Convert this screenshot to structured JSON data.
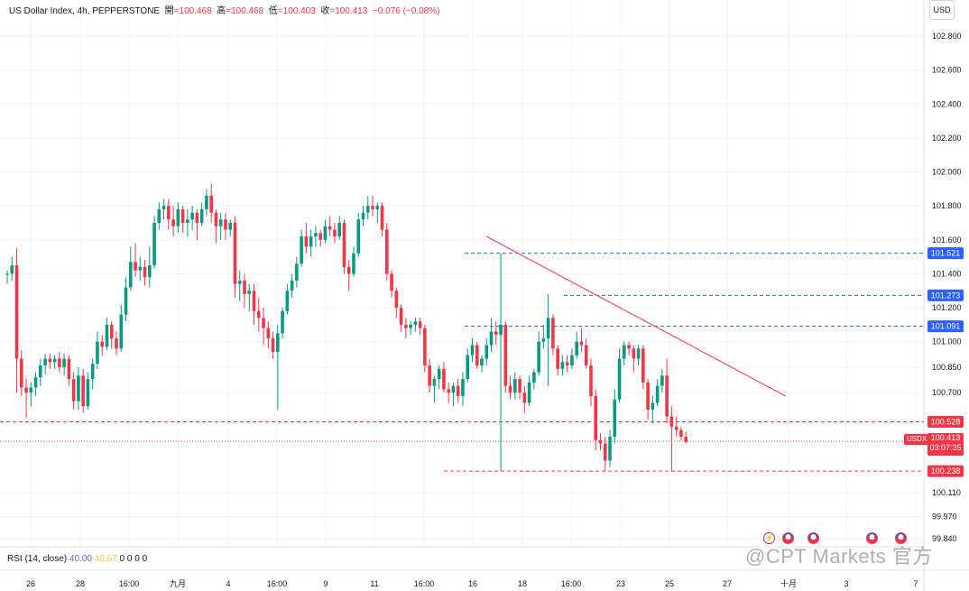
{
  "header": {
    "symbol": "US Dollar Index, 4h, PEPPERSTONE",
    "open_label": "開",
    "open_value": "=100.468",
    "high_label": "高",
    "high_value": "=100.468",
    "low_label": "低",
    "low_value": "=100.403",
    "close_label": "收",
    "close_value": "=100.413",
    "change_value": "−0.076 (−0.08%)"
  },
  "currency_label": "USD",
  "rsi": {
    "label": "RSI (14, close)",
    "value1": "40.00",
    "value2": "46.67",
    "extra": "0 0 0 0"
  },
  "watermark": "@CPT Markets 官方",
  "current_price": {
    "symbol": "USDX",
    "price": "100.413",
    "countdown": "03:07:35"
  },
  "colors": {
    "up": "#089981",
    "down": "#f23645",
    "level_blue": "#2962ff",
    "trendline": "#f7525f"
  },
  "chart_data": {
    "type": "candlestick",
    "ylim": [
      99.78,
      102.95
    ],
    "y_ticks": [
      "102.800",
      "102.600",
      "102.400",
      "102.200",
      "102.000",
      "101.800",
      "101.600",
      "101.400",
      "101.200",
      "101.000",
      "100.850",
      "100.700",
      "100.110",
      "99.970",
      "99.840"
    ],
    "x_ticks": [
      "26",
      "28",
      "16:00",
      "九月",
      "4",
      "16:00",
      "9",
      "11",
      "16:00",
      "16",
      "18",
      "16:00",
      "23",
      "25",
      "27",
      "十月",
      "3",
      "7"
    ],
    "levels": [
      {
        "value": 101.521,
        "label": "101.521",
        "color": "blue"
      },
      {
        "value": 101.273,
        "label": "101.273",
        "color": "blue"
      },
      {
        "value": 101.091,
        "label": "101.091",
        "color": "blue"
      },
      {
        "value": 100.528,
        "label": "100.528",
        "color": "red"
      },
      {
        "value": 100.238,
        "label": "100.238",
        "color": "red"
      }
    ],
    "current_value": 100.413,
    "trendline": [
      {
        "i": 101,
        "value": 101.62
      },
      {
        "i": 164,
        "value": 100.68
      }
    ],
    "candles": [
      [
        101.4,
        101.42,
        101.34,
        101.4
      ],
      [
        101.4,
        101.5,
        101.36,
        101.45
      ],
      [
        101.45,
        101.55,
        100.7,
        100.9
      ],
      [
        100.9,
        100.95,
        100.68,
        100.73
      ],
      [
        100.73,
        100.78,
        100.55,
        100.7
      ],
      [
        100.7,
        100.76,
        100.62,
        100.73
      ],
      [
        100.73,
        100.82,
        100.68,
        100.79
      ],
      [
        100.79,
        100.9,
        100.74,
        100.86
      ],
      [
        100.86,
        100.93,
        100.81,
        100.9
      ],
      [
        100.9,
        100.93,
        100.84,
        100.88
      ],
      [
        100.88,
        100.92,
        100.84,
        100.9
      ],
      [
        100.9,
        100.94,
        100.82,
        100.85
      ],
      [
        100.85,
        100.93,
        100.8,
        100.9
      ],
      [
        100.9,
        100.92,
        100.74,
        100.78
      ],
      [
        100.78,
        100.82,
        100.6,
        100.65
      ],
      [
        100.65,
        100.85,
        100.6,
        100.8
      ],
      [
        100.8,
        100.84,
        100.58,
        100.62
      ],
      [
        100.62,
        100.82,
        100.6,
        100.78
      ],
      [
        100.78,
        100.9,
        100.72,
        100.87
      ],
      [
        100.87,
        101.06,
        100.84,
        101.0
      ],
      [
        101.0,
        101.04,
        100.92,
        100.97
      ],
      [
        100.97,
        101.14,
        100.95,
        101.1
      ],
      [
        101.1,
        101.12,
        100.96,
        101.02
      ],
      [
        101.02,
        101.06,
        100.92,
        100.96
      ],
      [
        100.96,
        101.22,
        100.94,
        101.16
      ],
      [
        101.16,
        101.38,
        101.12,
        101.32
      ],
      [
        101.32,
        101.56,
        101.3,
        101.47
      ],
      [
        101.47,
        101.58,
        101.38,
        101.42
      ],
      [
        101.42,
        101.5,
        101.36,
        101.44
      ],
      [
        101.44,
        101.48,
        101.33,
        101.38
      ],
      [
        101.38,
        101.56,
        101.32,
        101.45
      ],
      [
        101.45,
        101.74,
        101.43,
        101.7
      ],
      [
        101.7,
        101.82,
        101.66,
        101.78
      ],
      [
        101.78,
        101.84,
        101.72,
        101.8
      ],
      [
        101.8,
        101.84,
        101.66,
        101.72
      ],
      [
        101.72,
        101.8,
        101.62,
        101.68
      ],
      [
        101.68,
        101.82,
        101.64,
        101.78
      ],
      [
        101.78,
        101.8,
        101.64,
        101.7
      ],
      [
        101.7,
        101.78,
        101.62,
        101.72
      ],
      [
        101.72,
        101.8,
        101.66,
        101.76
      ],
      [
        101.76,
        101.78,
        101.6,
        101.7
      ],
      [
        101.7,
        101.82,
        101.68,
        101.78
      ],
      [
        101.78,
        101.9,
        101.74,
        101.86
      ],
      [
        101.86,
        101.93,
        101.7,
        101.76
      ],
      [
        101.76,
        101.78,
        101.58,
        101.68
      ],
      [
        101.68,
        101.76,
        101.6,
        101.72
      ],
      [
        101.72,
        101.76,
        101.6,
        101.66
      ],
      [
        101.66,
        101.72,
        101.62,
        101.7
      ],
      [
        101.7,
        101.74,
        101.26,
        101.34
      ],
      [
        101.34,
        101.42,
        101.24,
        101.36
      ],
      [
        101.36,
        101.4,
        101.2,
        101.28
      ],
      [
        101.28,
        101.34,
        101.18,
        101.3
      ],
      [
        101.3,
        101.34,
        101.1,
        101.18
      ],
      [
        101.18,
        101.26,
        101.06,
        101.14
      ],
      [
        101.14,
        101.2,
        100.98,
        101.08
      ],
      [
        101.08,
        101.12,
        100.96,
        101.02
      ],
      [
        101.02,
        101.06,
        100.9,
        100.94
      ],
      [
        100.94,
        101.1,
        100.6,
        101.05
      ],
      [
        101.05,
        101.2,
        101.02,
        101.18
      ],
      [
        101.18,
        101.34,
        101.16,
        101.3
      ],
      [
        101.3,
        101.4,
        101.26,
        101.36
      ],
      [
        101.36,
        101.5,
        101.32,
        101.46
      ],
      [
        101.46,
        101.66,
        101.44,
        101.62
      ],
      [
        101.62,
        101.7,
        101.52,
        101.56
      ],
      [
        101.56,
        101.66,
        101.5,
        101.62
      ],
      [
        101.62,
        101.68,
        101.56,
        101.64
      ],
      [
        101.64,
        101.66,
        101.56,
        101.6
      ],
      [
        101.6,
        101.72,
        101.58,
        101.68
      ],
      [
        101.68,
        101.74,
        101.62,
        101.66
      ],
      [
        101.66,
        101.7,
        101.58,
        101.62
      ],
      [
        101.62,
        101.74,
        101.6,
        101.7
      ],
      [
        101.7,
        101.72,
        101.4,
        101.44
      ],
      [
        101.44,
        101.48,
        101.3,
        101.4
      ],
      [
        101.4,
        101.56,
        101.38,
        101.52
      ],
      [
        101.52,
        101.76,
        101.5,
        101.72
      ],
      [
        101.72,
        101.8,
        101.68,
        101.76
      ],
      [
        101.76,
        101.86,
        101.72,
        101.8
      ],
      [
        101.8,
        101.86,
        101.74,
        101.78
      ],
      [
        101.78,
        101.82,
        101.7,
        101.8
      ],
      [
        101.8,
        101.82,
        101.62,
        101.66
      ],
      [
        101.66,
        101.7,
        101.36,
        101.4
      ],
      [
        101.4,
        101.42,
        101.26,
        101.3
      ],
      [
        101.3,
        101.32,
        101.14,
        101.2
      ],
      [
        101.2,
        101.22,
        101.06,
        101.1
      ],
      [
        101.1,
        101.14,
        101.02,
        101.08
      ],
      [
        101.08,
        101.12,
        101.04,
        101.1
      ],
      [
        101.1,
        101.14,
        101.06,
        101.12
      ],
      [
        101.12,
        101.14,
        101.04,
        101.08
      ],
      [
        101.08,
        101.1,
        100.82,
        100.86
      ],
      [
        100.86,
        100.9,
        100.7,
        100.74
      ],
      [
        100.74,
        100.8,
        100.64,
        100.78
      ],
      [
        100.78,
        100.86,
        100.72,
        100.84
      ],
      [
        100.84,
        100.88,
        100.7,
        100.72
      ],
      [
        100.72,
        100.76,
        100.64,
        100.7
      ],
      [
        100.7,
        100.76,
        100.62,
        100.74
      ],
      [
        100.74,
        100.78,
        100.64,
        100.68
      ],
      [
        100.68,
        100.82,
        100.62,
        100.78
      ],
      [
        100.78,
        100.96,
        100.76,
        100.92
      ],
      [
        100.92,
        101.02,
        100.88,
        100.98
      ],
      [
        100.98,
        101.0,
        100.84,
        100.86
      ],
      [
        100.86,
        100.92,
        100.82,
        100.9
      ],
      [
        100.9,
        101.02,
        100.86,
        100.98
      ],
      [
        100.98,
        101.14,
        100.94,
        101.06
      ],
      [
        101.06,
        101.12,
        100.98,
        101.04
      ],
      [
        101.04,
        101.52,
        100.24,
        101.1
      ],
      [
        101.1,
        101.12,
        100.7,
        100.74
      ],
      [
        100.74,
        100.8,
        100.66,
        100.7
      ],
      [
        100.7,
        100.82,
        100.66,
        100.78
      ],
      [
        100.78,
        100.8,
        100.66,
        100.7
      ],
      [
        100.7,
        100.74,
        100.58,
        100.64
      ],
      [
        100.64,
        100.8,
        100.62,
        100.76
      ],
      [
        100.76,
        100.84,
        100.72,
        100.82
      ],
      [
        100.82,
        101.06,
        100.8,
        101.0
      ],
      [
        101.0,
        101.1,
        100.96,
        101.02
      ],
      [
        101.02,
        101.28,
        100.74,
        101.14
      ],
      [
        101.14,
        101.16,
        100.92,
        100.96
      ],
      [
        100.96,
        100.98,
        100.8,
        100.84
      ],
      [
        100.84,
        100.92,
        100.8,
        100.88
      ],
      [
        100.88,
        100.92,
        100.82,
        100.86
      ],
      [
        100.86,
        100.96,
        100.84,
        100.92
      ],
      [
        100.92,
        101.06,
        100.9,
        101.0
      ],
      [
        101.0,
        101.08,
        100.94,
        100.98
      ],
      [
        100.98,
        101.02,
        100.84,
        100.86
      ],
      [
        100.86,
        100.9,
        100.62,
        100.68
      ],
      [
        100.68,
        100.72,
        100.36,
        100.42
      ],
      [
        100.42,
        100.46,
        100.36,
        100.4
      ],
      [
        100.4,
        100.44,
        100.24,
        100.3
      ],
      [
        100.3,
        100.48,
        100.26,
        100.44
      ],
      [
        100.44,
        100.72,
        100.4,
        100.66
      ],
      [
        100.66,
        100.96,
        100.64,
        100.9
      ],
      [
        100.9,
        101.0,
        100.86,
        100.98
      ],
      [
        100.98,
        101.0,
        100.92,
        100.96
      ],
      [
        100.96,
        100.98,
        100.82,
        100.9
      ],
      [
        100.9,
        100.98,
        100.86,
        100.96
      ],
      [
        100.96,
        100.98,
        100.72,
        100.76
      ],
      [
        100.76,
        100.78,
        100.54,
        100.6
      ],
      [
        100.6,
        100.68,
        100.52,
        100.64
      ],
      [
        100.64,
        100.78,
        100.62,
        100.74
      ],
      [
        100.74,
        100.84,
        100.7,
        100.8
      ],
      [
        100.8,
        100.9,
        100.52,
        100.56
      ],
      [
        100.56,
        100.62,
        100.24,
        100.5
      ],
      [
        100.5,
        100.56,
        100.44,
        100.48
      ],
      [
        100.48,
        100.5,
        100.42,
        100.44
      ],
      [
        100.44,
        100.47,
        100.4,
        100.41
      ]
    ]
  }
}
